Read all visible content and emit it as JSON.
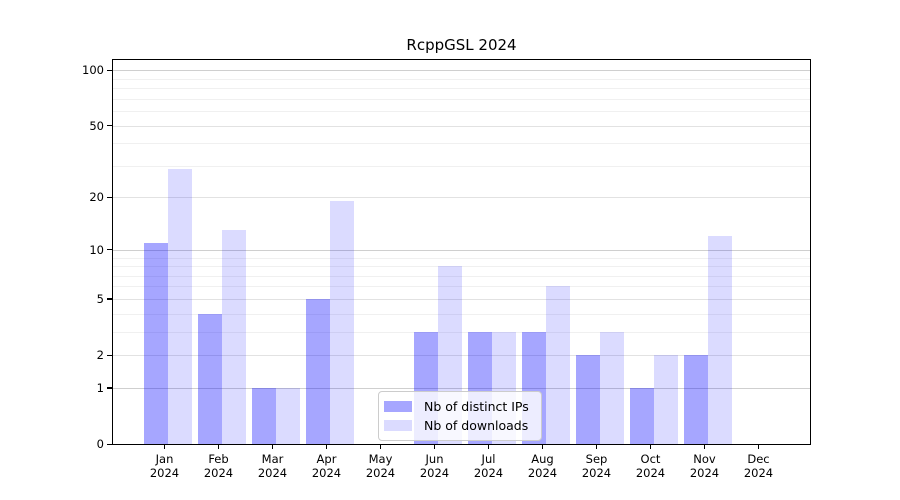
{
  "title": "RcppGSL 2024",
  "colors": {
    "bar_distinct_ips": "#0000ff59",
    "bar_downloads": "#0000ff24",
    "axis": "#000000",
    "grid_decade": "#cfcfcf",
    "grid_labeled": "#e2e2e2",
    "grid_minor": "#f0f0f0",
    "legend_border": "#cccccc",
    "legend_bg": "#ffffffcc"
  },
  "chart_data": {
    "type": "bar",
    "title": "RcppGSL 2024",
    "y_scale": "log1p",
    "grid": "on",
    "legend_position": "lower-center-left-inside",
    "x_year": "2024",
    "categories": [
      "Jan",
      "Feb",
      "Mar",
      "Apr",
      "May",
      "Jun",
      "Jul",
      "Aug",
      "Sep",
      "Oct",
      "Nov",
      "Dec"
    ],
    "series": [
      {
        "name": "Nb of distinct IPs",
        "values": [
          11,
          4,
          1,
          5,
          0,
          3,
          3,
          3,
          2,
          1,
          2,
          0
        ]
      },
      {
        "name": "Nb of downloads",
        "values": [
          29,
          13,
          1,
          19,
          0,
          8,
          3,
          6,
          3,
          2,
          12,
          0
        ]
      }
    ],
    "yticks": [
      0,
      1,
      2,
      5,
      10,
      20,
      50,
      100
    ],
    "minor_gridline_values": [
      3,
      4,
      6,
      7,
      8,
      9,
      30,
      40,
      60,
      70,
      80,
      90
    ],
    "ylim": [
      0,
      114
    ]
  }
}
